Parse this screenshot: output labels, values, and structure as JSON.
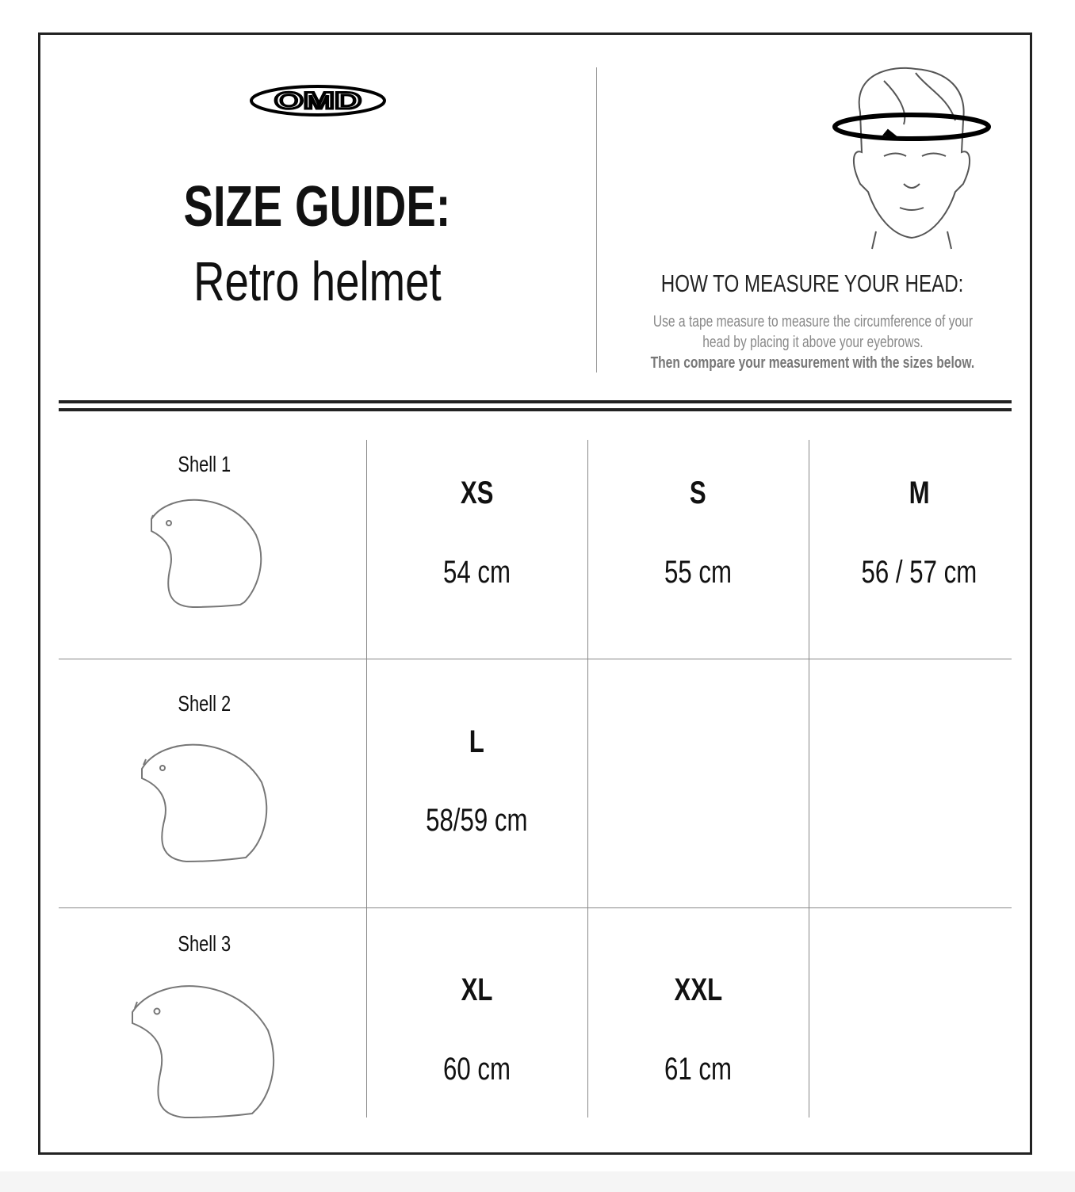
{
  "logo": {
    "text": "OMD"
  },
  "header": {
    "title": "SIZE GUIDE:",
    "subtitle": "Retro helmet"
  },
  "measure": {
    "heading": "HOW TO MEASURE YOUR HEAD:",
    "line1": "Use a tape measure to measure the circumference of your",
    "line2": "head by placing it above your eyebrows.",
    "line3": "Then compare your measurement with the sizes below."
  },
  "rows": [
    {
      "shell": "Shell 1",
      "sizes": [
        {
          "size": "XS",
          "value": "54 cm"
        },
        {
          "size": "S",
          "value": "55 cm"
        },
        {
          "size": "M",
          "value": "56 / 57 cm"
        }
      ]
    },
    {
      "shell": "Shell 2",
      "sizes": [
        {
          "size": "L",
          "value": "58/59 cm"
        }
      ]
    },
    {
      "shell": "Shell 3",
      "sizes": [
        {
          "size": "XL",
          "value": "60 cm"
        },
        {
          "size": "XXL",
          "value": "61 cm"
        }
      ]
    }
  ]
}
